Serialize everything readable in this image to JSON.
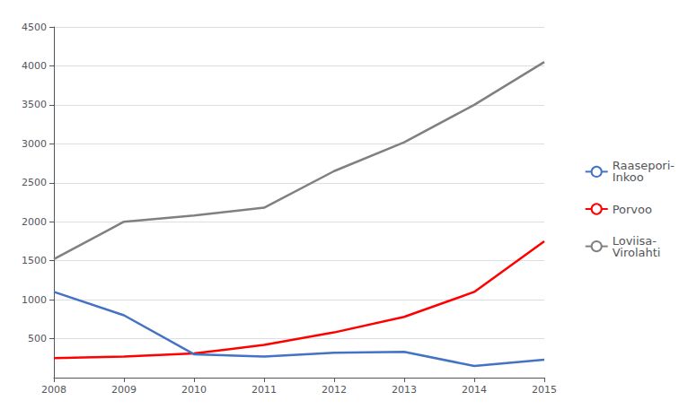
{
  "chart_data": {
    "type": "line",
    "categories": [
      "2008",
      "2009",
      "2010",
      "2011",
      "2012",
      "2013",
      "2014",
      "2015"
    ],
    "series": [
      {
        "name": "Loviisa-\nVirolahti",
        "color": "#808080",
        "values": [
          1520,
          2000,
          2080,
          2180,
          2650,
          3020,
          3500,
          4050
        ]
      },
      {
        "name": "Porvoo",
        "color": "#FF0000",
        "values": [
          250,
          270,
          310,
          420,
          580,
          780,
          1100,
          1750
        ]
      },
      {
        "name": "Raasepori-\nInkoo",
        "color": "#4472C4",
        "values": [
          1100,
          800,
          300,
          270,
          320,
          330,
          150,
          230
        ]
      }
    ],
    "ylim": [
      0,
      4500
    ],
    "yticks": [
      500,
      1000,
      1500,
      2000,
      2500,
      3000,
      3500,
      4000,
      4500
    ],
    "grid": true,
    "legend": "right"
  }
}
